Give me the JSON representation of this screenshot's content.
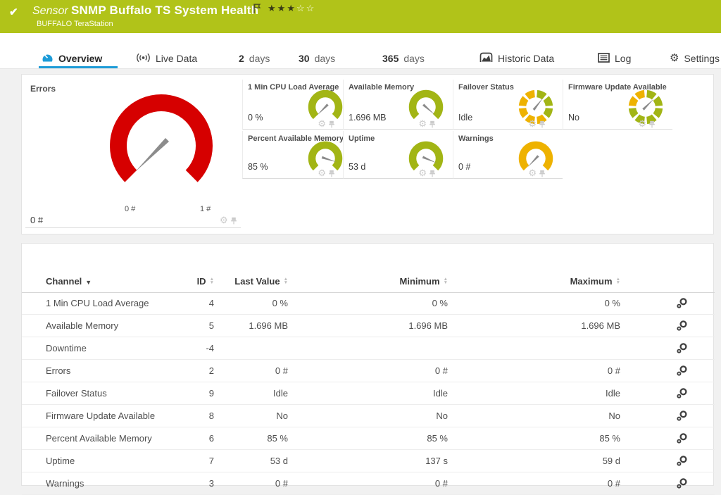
{
  "header": {
    "check": "✔",
    "kind": "Sensor",
    "title": "SNMP Buffalo TS System Health",
    "subtitle": "BUFFALO TeraStation",
    "stars_filled": 3,
    "stars_total": 5
  },
  "tabs": {
    "overview": "Overview",
    "live_data": "Live Data",
    "d2_num": "2",
    "d2_word": "days",
    "d30_num": "30",
    "d30_word": "days",
    "d365_num": "365",
    "d365_word": "days",
    "historic": "Historic Data",
    "log": "Log",
    "settings": "Settings"
  },
  "colors": {
    "status_green": "#b1c319",
    "accent_blue": "#1e9cd8",
    "gauge_red": "#d60000",
    "gauge_green": "#a2b515",
    "gauge_yellow": "#eeb200",
    "needle_gray": "#8a8a8a"
  },
  "gauges": {
    "errors": {
      "label": "Errors",
      "value": "0 #",
      "min_label": "0 #",
      "max_label": "1 #",
      "color": "#d60000",
      "needle_deg": 225
    },
    "tiles": [
      {
        "label": "1 Min CPU Load Average",
        "value": "0 %",
        "type": "solid",
        "color": "#a2b515",
        "needle_deg": 225
      },
      {
        "label": "Available Memory",
        "value": "1.696 MB",
        "type": "solid",
        "color": "#a2b515",
        "needle_deg": -41
      },
      {
        "label": "Failover Status",
        "value": "Idle",
        "type": "segmented",
        "needle_deg": 52,
        "segments": [
          "#a2b515",
          "#a2b515",
          "#a2b515",
          "#eeb200",
          "#eeb200",
          "#eeb200",
          "#eeb200",
          "#eeb200"
        ]
      },
      {
        "label": "Firmware Update Available",
        "value": "No",
        "type": "segmented",
        "needle_deg": 45,
        "segments": [
          "#a2b515",
          "#a2b515",
          "#a2b515",
          "#a2b515",
          "#a2b515",
          "#a2b515",
          "#eeb200",
          "#eeb200"
        ]
      },
      {
        "label": "Percent Available Memory",
        "value": "85 %",
        "type": "solid",
        "color": "#a2b515",
        "needle_deg": -18
      },
      {
        "label": "Uptime",
        "value": "53 d",
        "type": "solid",
        "color": "#a2b515",
        "needle_deg": -23
      },
      {
        "label": "Warnings",
        "value": "0 #",
        "type": "solid",
        "color": "#eeb200",
        "needle_deg": 227
      }
    ]
  },
  "table": {
    "headers": {
      "channel": "Channel",
      "id": "ID",
      "last": "Last Value",
      "min": "Minimum",
      "max": "Maximum"
    },
    "rows": [
      {
        "channel": "1 Min CPU Load Average",
        "id": "4",
        "last": "0 %",
        "min": "0 %",
        "max": "0 %"
      },
      {
        "channel": "Available Memory",
        "id": "5",
        "last": "1.696 MB",
        "min": "1.696 MB",
        "max": "1.696 MB"
      },
      {
        "channel": "Downtime",
        "id": "-4",
        "last": "",
        "min": "",
        "max": ""
      },
      {
        "channel": "Errors",
        "id": "2",
        "last": "0 #",
        "min": "0 #",
        "max": "0 #"
      },
      {
        "channel": "Failover Status",
        "id": "9",
        "last": "Idle",
        "min": "Idle",
        "max": "Idle"
      },
      {
        "channel": "Firmware Update Available",
        "id": "8",
        "last": "No",
        "min": "No",
        "max": "No"
      },
      {
        "channel": "Percent Available Memory",
        "id": "6",
        "last": "85 %",
        "min": "85 %",
        "max": "85 %"
      },
      {
        "channel": "Uptime",
        "id": "7",
        "last": "53 d",
        "min": "137 s",
        "max": "59 d"
      },
      {
        "channel": "Warnings",
        "id": "3",
        "last": "0 #",
        "min": "0 #",
        "max": "0 #"
      }
    ]
  }
}
